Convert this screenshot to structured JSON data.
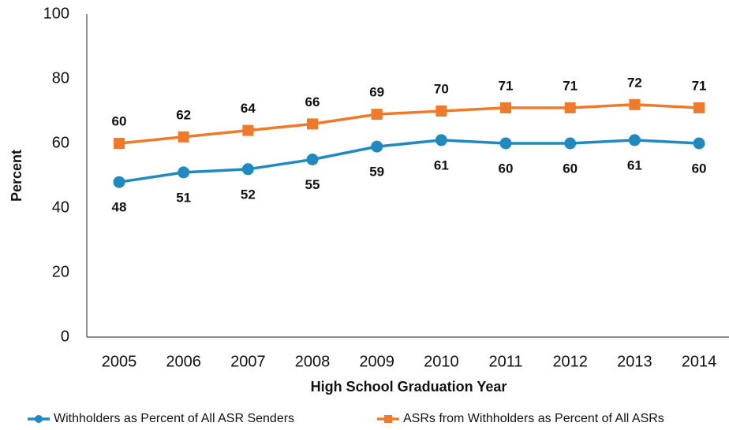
{
  "chart_data": {
    "type": "line",
    "x_label": "High School Graduation Year",
    "y_label": "Percent",
    "categories": [
      "2005",
      "2006",
      "2007",
      "2008",
      "2009",
      "2010",
      "2011",
      "2012",
      "2013",
      "2014"
    ],
    "series": [
      {
        "name": "Withholders as Percent of All ASR Senders",
        "color": "#1f8ac0",
        "marker": "circle",
        "label_position": "below",
        "values": [
          48,
          51,
          52,
          55,
          59,
          61,
          60,
          60,
          61,
          60
        ]
      },
      {
        "name": "ASRs from Withholders as Percent of All ASRs",
        "color": "#f07a2a",
        "marker": "square",
        "label_position": "above",
        "values": [
          60,
          62,
          64,
          66,
          69,
          70,
          71,
          71,
          72,
          71
        ]
      }
    ],
    "ylim": [
      0,
      100
    ],
    "yticks": [
      0,
      20,
      40,
      60,
      80,
      100
    ],
    "grid": false,
    "legend": "bottom"
  }
}
